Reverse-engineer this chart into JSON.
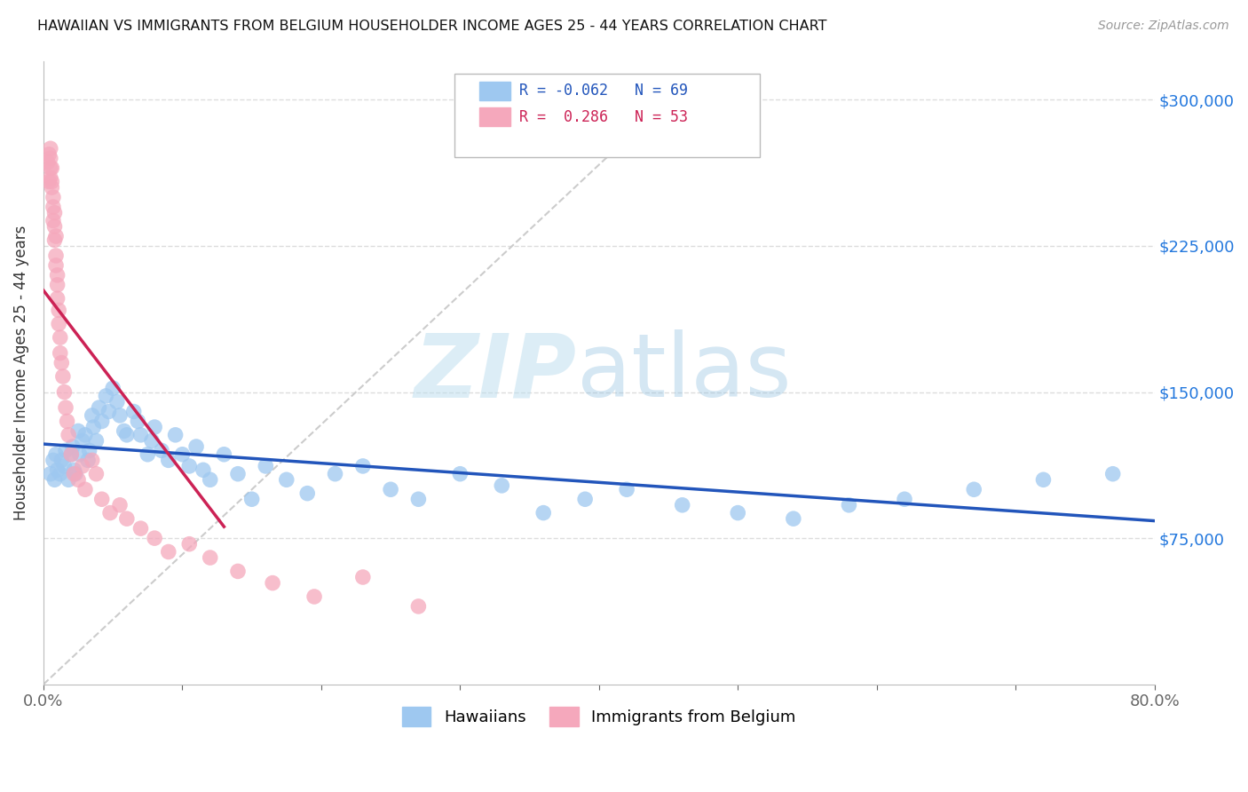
{
  "title": "HAWAIIAN VS IMMIGRANTS FROM BELGIUM HOUSEHOLDER INCOME AGES 25 - 44 YEARS CORRELATION CHART",
  "source": "Source: ZipAtlas.com",
  "ylabel": "Householder Income Ages 25 - 44 years",
  "ytick_labels": [
    "$75,000",
    "$150,000",
    "$225,000",
    "$300,000"
  ],
  "ytick_values": [
    75000,
    150000,
    225000,
    300000
  ],
  "xmin": 0.0,
  "xmax": 0.8,
  "ymin": 0,
  "ymax": 320000,
  "legend_blue_r": "R = -0.062",
  "legend_blue_n": "N = 69",
  "legend_pink_r": "R =  0.286",
  "legend_pink_n": "N = 53",
  "legend_blue_label": "Hawaiians",
  "legend_pink_label": "Immigrants from Belgium",
  "blue_color": "#9EC8F0",
  "pink_color": "#F5A8BC",
  "blue_line_color": "#2255BB",
  "pink_line_color": "#CC2255",
  "title_color": "#111111",
  "source_color": "#999999",
  "axis_label_color": "#333333",
  "ytick_color": "#2277DD",
  "grid_color": "#DDDDDD",
  "blue_scatter_x": [
    0.005,
    0.007,
    0.008,
    0.009,
    0.01,
    0.012,
    0.013,
    0.015,
    0.016,
    0.018,
    0.02,
    0.021,
    0.022,
    0.023,
    0.025,
    0.026,
    0.028,
    0.03,
    0.032,
    0.033,
    0.035,
    0.036,
    0.038,
    0.04,
    0.042,
    0.045,
    0.047,
    0.05,
    0.053,
    0.055,
    0.058,
    0.06,
    0.065,
    0.068,
    0.07,
    0.075,
    0.078,
    0.08,
    0.085,
    0.09,
    0.095,
    0.1,
    0.105,
    0.11,
    0.115,
    0.12,
    0.13,
    0.14,
    0.15,
    0.16,
    0.175,
    0.19,
    0.21,
    0.23,
    0.25,
    0.27,
    0.3,
    0.33,
    0.36,
    0.39,
    0.42,
    0.46,
    0.5,
    0.54,
    0.58,
    0.62,
    0.67,
    0.72,
    0.77
  ],
  "blue_scatter_y": [
    108000,
    115000,
    105000,
    118000,
    110000,
    108000,
    115000,
    112000,
    120000,
    105000,
    118000,
    122000,
    110000,
    108000,
    130000,
    118000,
    125000,
    128000,
    115000,
    120000,
    138000,
    132000,
    125000,
    142000,
    135000,
    148000,
    140000,
    152000,
    145000,
    138000,
    130000,
    128000,
    140000,
    135000,
    128000,
    118000,
    125000,
    132000,
    120000,
    115000,
    128000,
    118000,
    112000,
    122000,
    110000,
    105000,
    118000,
    108000,
    95000,
    112000,
    105000,
    98000,
    108000,
    112000,
    100000,
    95000,
    108000,
    102000,
    88000,
    95000,
    100000,
    92000,
    88000,
    85000,
    92000,
    95000,
    100000,
    105000,
    108000
  ],
  "pink_scatter_x": [
    0.003,
    0.004,
    0.004,
    0.005,
    0.005,
    0.005,
    0.005,
    0.006,
    0.006,
    0.006,
    0.007,
    0.007,
    0.007,
    0.008,
    0.008,
    0.008,
    0.009,
    0.009,
    0.009,
    0.01,
    0.01,
    0.01,
    0.011,
    0.011,
    0.012,
    0.012,
    0.013,
    0.014,
    0.015,
    0.016,
    0.017,
    0.018,
    0.02,
    0.022,
    0.025,
    0.028,
    0.03,
    0.035,
    0.038,
    0.042,
    0.048,
    0.055,
    0.06,
    0.07,
    0.08,
    0.09,
    0.105,
    0.12,
    0.14,
    0.165,
    0.195,
    0.23,
    0.27
  ],
  "pink_scatter_y": [
    268000,
    258000,
    272000,
    275000,
    270000,
    265000,
    260000,
    258000,
    265000,
    255000,
    250000,
    245000,
    238000,
    242000,
    235000,
    228000,
    230000,
    220000,
    215000,
    210000,
    205000,
    198000,
    192000,
    185000,
    178000,
    170000,
    165000,
    158000,
    150000,
    142000,
    135000,
    128000,
    118000,
    108000,
    105000,
    112000,
    100000,
    115000,
    108000,
    95000,
    88000,
    92000,
    85000,
    80000,
    75000,
    68000,
    72000,
    65000,
    58000,
    52000,
    45000,
    55000,
    40000
  ]
}
